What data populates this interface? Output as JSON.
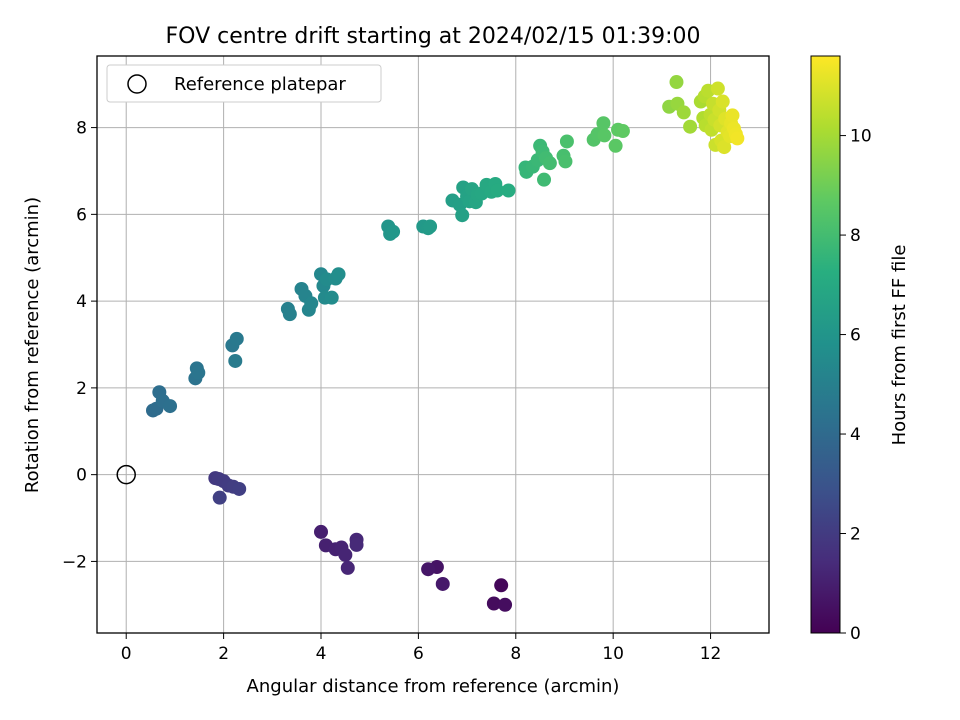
{
  "chart_data": {
    "type": "scatter",
    "title": "FOV centre drift starting at 2024/02/15 01:39:00",
    "xlabel": "Angular distance from reference (arcmin)",
    "ylabel": "Rotation from reference (arcmin)",
    "xlim": [
      -0.6,
      13.2
    ],
    "ylim": [
      -3.65,
      9.65
    ],
    "xticks": [
      0,
      2,
      4,
      6,
      8,
      10,
      12
    ],
    "yticks": [
      -2,
      0,
      2,
      4,
      6,
      8
    ],
    "grid": true,
    "legend": {
      "position": "upper-left",
      "entries": [
        "Reference platepar"
      ]
    },
    "reference_point": {
      "x": 0,
      "y": 0,
      "marker": "open-circle"
    },
    "colorbar": {
      "label": "Hours from first FF file",
      "colormap": "viridis",
      "range": [
        0,
        11.6
      ],
      "ticks": [
        0,
        2,
        4,
        6,
        8,
        10
      ]
    },
    "series": [
      {
        "points": [
          {
            "x": 7.7,
            "y": -2.55,
            "c": 0.2
          },
          {
            "x": 7.55,
            "y": -2.97,
            "c": 0.35
          },
          {
            "x": 7.78,
            "y": -3.0,
            "c": 0.4
          },
          {
            "x": 6.38,
            "y": -2.13,
            "c": 0.6
          },
          {
            "x": 6.2,
            "y": -2.18,
            "c": 0.7
          },
          {
            "x": 6.5,
            "y": -2.52,
            "c": 0.8
          },
          {
            "x": 4.0,
            "y": -1.32,
            "c": 1.0
          },
          {
            "x": 4.1,
            "y": -1.63,
            "c": 1.05
          },
          {
            "x": 4.3,
            "y": -1.72,
            "c": 1.1
          },
          {
            "x": 4.42,
            "y": -1.68,
            "c": 1.15
          },
          {
            "x": 4.5,
            "y": -1.85,
            "c": 1.2
          },
          {
            "x": 4.55,
            "y": -2.15,
            "c": 1.25
          },
          {
            "x": 4.73,
            "y": -1.5,
            "c": 1.3
          },
          {
            "x": 4.73,
            "y": -1.62,
            "c": 1.35
          },
          {
            "x": 1.83,
            "y": -0.08,
            "c": 1.9
          },
          {
            "x": 1.9,
            "y": -0.1,
            "c": 1.95
          },
          {
            "x": 2.0,
            "y": -0.15,
            "c": 2.0
          },
          {
            "x": 2.1,
            "y": -0.25,
            "c": 2.05
          },
          {
            "x": 2.2,
            "y": -0.28,
            "c": 2.1
          },
          {
            "x": 2.32,
            "y": -0.33,
            "c": 2.15
          },
          {
            "x": 1.92,
            "y": -0.53,
            "c": 2.2
          },
          {
            "x": 0.55,
            "y": 1.48,
            "c": 4.05
          },
          {
            "x": 0.62,
            "y": 1.52,
            "c": 4.1
          },
          {
            "x": 0.68,
            "y": 1.9,
            "c": 4.15
          },
          {
            "x": 0.75,
            "y": 1.7,
            "c": 4.2
          },
          {
            "x": 0.9,
            "y": 1.58,
            "c": 4.25
          },
          {
            "x": 1.42,
            "y": 2.22,
            "c": 4.4
          },
          {
            "x": 1.45,
            "y": 2.45,
            "c": 4.45
          },
          {
            "x": 1.48,
            "y": 2.35,
            "c": 4.5
          },
          {
            "x": 2.18,
            "y": 2.98,
            "c": 4.65
          },
          {
            "x": 2.27,
            "y": 3.13,
            "c": 4.7
          },
          {
            "x": 2.24,
            "y": 2.62,
            "c": 4.75
          },
          {
            "x": 3.32,
            "y": 3.82,
            "c": 5.0
          },
          {
            "x": 3.36,
            "y": 3.7,
            "c": 5.05
          },
          {
            "x": 3.6,
            "y": 4.28,
            "c": 5.15
          },
          {
            "x": 3.68,
            "y": 4.12,
            "c": 5.2
          },
          {
            "x": 3.75,
            "y": 3.8,
            "c": 5.25
          },
          {
            "x": 3.8,
            "y": 3.95,
            "c": 5.3
          },
          {
            "x": 4.0,
            "y": 4.62,
            "c": 5.35
          },
          {
            "x": 4.05,
            "y": 4.35,
            "c": 5.4
          },
          {
            "x": 4.08,
            "y": 4.08,
            "c": 5.45
          },
          {
            "x": 4.12,
            "y": 4.5,
            "c": 5.5
          },
          {
            "x": 4.22,
            "y": 4.08,
            "c": 5.55
          },
          {
            "x": 4.3,
            "y": 4.52,
            "c": 5.6
          },
          {
            "x": 4.36,
            "y": 4.62,
            "c": 5.65
          },
          {
            "x": 5.38,
            "y": 5.72,
            "c": 6.0
          },
          {
            "x": 5.42,
            "y": 5.55,
            "c": 6.05
          },
          {
            "x": 5.48,
            "y": 5.6,
            "c": 6.1
          },
          {
            "x": 6.1,
            "y": 5.72,
            "c": 6.2
          },
          {
            "x": 6.2,
            "y": 5.68,
            "c": 6.25
          },
          {
            "x": 6.24,
            "y": 5.72,
            "c": 6.3
          },
          {
            "x": 6.7,
            "y": 6.32,
            "c": 6.45
          },
          {
            "x": 6.85,
            "y": 6.22,
            "c": 6.5
          },
          {
            "x": 6.9,
            "y": 5.98,
            "c": 6.55
          },
          {
            "x": 6.92,
            "y": 6.62,
            "c": 6.6
          },
          {
            "x": 7.0,
            "y": 6.42,
            "c": 6.65
          },
          {
            "x": 7.05,
            "y": 6.3,
            "c": 6.7
          },
          {
            "x": 7.1,
            "y": 6.58,
            "c": 6.75
          },
          {
            "x": 7.18,
            "y": 6.28,
            "c": 6.8
          },
          {
            "x": 7.22,
            "y": 6.45,
            "c": 6.85
          },
          {
            "x": 7.3,
            "y": 6.48,
            "c": 6.9
          },
          {
            "x": 7.4,
            "y": 6.68,
            "c": 6.95
          },
          {
            "x": 7.5,
            "y": 6.52,
            "c": 7.0
          },
          {
            "x": 7.58,
            "y": 6.7,
            "c": 7.05
          },
          {
            "x": 7.62,
            "y": 6.55,
            "c": 7.1
          },
          {
            "x": 7.85,
            "y": 6.55,
            "c": 7.15
          },
          {
            "x": 8.2,
            "y": 7.08,
            "c": 7.6
          },
          {
            "x": 8.22,
            "y": 6.98,
            "c": 7.65
          },
          {
            "x": 8.35,
            "y": 7.1,
            "c": 7.7
          },
          {
            "x": 8.45,
            "y": 7.25,
            "c": 7.75
          },
          {
            "x": 8.5,
            "y": 7.58,
            "c": 7.8
          },
          {
            "x": 8.55,
            "y": 7.45,
            "c": 7.85
          },
          {
            "x": 8.58,
            "y": 6.8,
            "c": 7.9
          },
          {
            "x": 8.62,
            "y": 7.3,
            "c": 7.95
          },
          {
            "x": 8.7,
            "y": 7.18,
            "c": 8.0
          },
          {
            "x": 8.98,
            "y": 7.35,
            "c": 8.1
          },
          {
            "x": 9.02,
            "y": 7.22,
            "c": 8.15
          },
          {
            "x": 9.05,
            "y": 7.68,
            "c": 8.2
          },
          {
            "x": 9.6,
            "y": 7.72,
            "c": 8.4
          },
          {
            "x": 9.68,
            "y": 7.85,
            "c": 8.45
          },
          {
            "x": 9.8,
            "y": 8.1,
            "c": 8.5
          },
          {
            "x": 9.82,
            "y": 7.82,
            "c": 8.55
          },
          {
            "x": 10.05,
            "y": 7.58,
            "c": 8.6
          },
          {
            "x": 10.1,
            "y": 7.95,
            "c": 8.65
          },
          {
            "x": 10.2,
            "y": 7.92,
            "c": 8.7
          },
          {
            "x": 11.15,
            "y": 8.48,
            "c": 9.6
          },
          {
            "x": 11.3,
            "y": 9.05,
            "c": 9.7
          },
          {
            "x": 11.32,
            "y": 8.55,
            "c": 9.75
          },
          {
            "x": 11.45,
            "y": 8.35,
            "c": 9.85
          },
          {
            "x": 11.58,
            "y": 8.02,
            "c": 9.95
          },
          {
            "x": 11.8,
            "y": 8.6,
            "c": 10.1
          },
          {
            "x": 11.85,
            "y": 8.22,
            "c": 10.2
          },
          {
            "x": 11.88,
            "y": 8.72,
            "c": 10.3
          },
          {
            "x": 11.9,
            "y": 8.05,
            "c": 10.35
          },
          {
            "x": 11.95,
            "y": 8.85,
            "c": 10.4
          },
          {
            "x": 12.0,
            "y": 8.3,
            "c": 10.45
          },
          {
            "x": 12.02,
            "y": 7.95,
            "c": 10.5
          },
          {
            "x": 12.05,
            "y": 8.55,
            "c": 10.6
          },
          {
            "x": 12.08,
            "y": 8.18,
            "c": 10.65
          },
          {
            "x": 12.1,
            "y": 7.6,
            "c": 10.7
          },
          {
            "x": 12.15,
            "y": 8.9,
            "c": 10.75
          },
          {
            "x": 12.18,
            "y": 8.4,
            "c": 10.8
          },
          {
            "x": 12.2,
            "y": 8.05,
            "c": 10.85
          },
          {
            "x": 12.22,
            "y": 7.7,
            "c": 10.9
          },
          {
            "x": 12.25,
            "y": 8.6,
            "c": 10.95
          },
          {
            "x": 12.28,
            "y": 7.55,
            "c": 11.0
          },
          {
            "x": 12.3,
            "y": 8.2,
            "c": 11.05
          },
          {
            "x": 12.35,
            "y": 7.9,
            "c": 11.1
          },
          {
            "x": 12.4,
            "y": 7.8,
            "c": 11.15
          },
          {
            "x": 12.42,
            "y": 8.1,
            "c": 11.2
          },
          {
            "x": 12.45,
            "y": 8.28,
            "c": 11.25
          },
          {
            "x": 12.48,
            "y": 7.98,
            "c": 11.3
          },
          {
            "x": 12.52,
            "y": 7.85,
            "c": 11.35
          },
          {
            "x": 12.55,
            "y": 7.75,
            "c": 11.4
          }
        ]
      }
    ]
  }
}
